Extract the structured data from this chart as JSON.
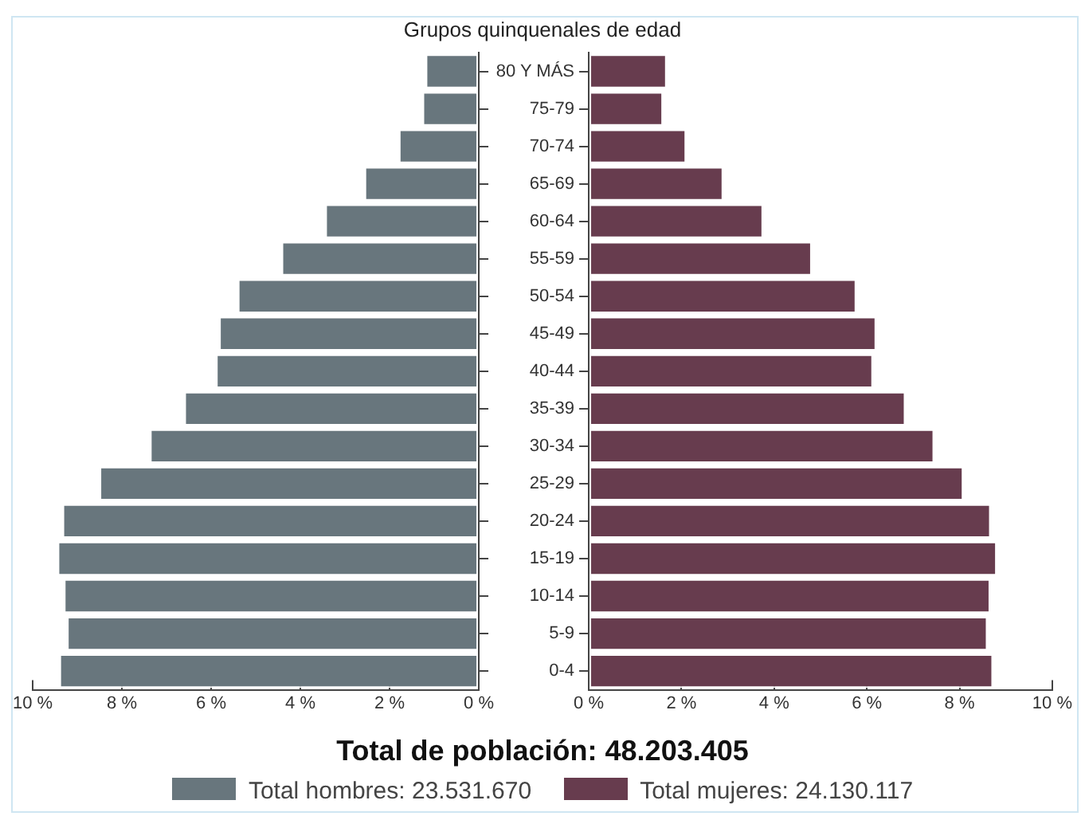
{
  "chart_data": [
    {
      "type": "bar",
      "orientation": "horizontal",
      "categories": [
        null,
        null,
        null,
        null,
        null,
        null,
        null,
        null,
        null,
        null,
        null,
        null,
        null,
        null,
        null,
        null,
        null
      ],
      "series": [
        {
          "name": "Total hombres: 23.531.670",
          "color": "#68767d",
          "values": [
            1.19,
            1.26,
            1.79,
            2.56,
            3.44,
            4.42,
            5.4,
            5.82,
            5.89,
            6.6,
            7.37,
            8.5,
            9.33,
            9.44,
            9.3,
            9.23,
            9.4
          ]
        }
      ],
      "xlim": [
        10,
        0
      ],
      "xticks": [
        {
          "value": 10,
          "label": "10 %"
        },
        {
          "value": 8,
          "label": "8 %"
        },
        {
          "value": 6,
          "label": "6 %"
        },
        {
          "value": 4,
          "label": "4 %"
        },
        {
          "value": 2,
          "label": "2 %"
        },
        {
          "value": 0,
          "label": "0 %"
        }
      ],
      "grid": false,
      "legend": "bottom",
      "annotations": [
        "Total de población: 48.203.405"
      ]
    },
    {
      "type": "bar",
      "orientation": "horizontal",
      "ylabel": "Grupos quinquenales de edad",
      "categories": [
        "80 Y MÁS",
        "75-79",
        "70-74",
        "65-69",
        "60-64",
        "55-59",
        "50-54",
        "45-49",
        "40-44",
        "35-39",
        "30-34",
        "25-29",
        "20-24",
        "15-19",
        "10-14",
        "5-9",
        "0-4"
      ],
      "series": [
        {
          "name": "Total mujeres: 24.130.117",
          "color": "#673c4e",
          "values": [
            1.68,
            1.6,
            2.1,
            2.9,
            3.76,
            4.81,
            5.77,
            6.2,
            6.13,
            6.83,
            7.45,
            8.08,
            8.67,
            8.8,
            8.66,
            8.6,
            8.72
          ]
        }
      ],
      "xlim": [
        0,
        10
      ],
      "xticks": [
        {
          "value": 0,
          "label": "0 %"
        },
        {
          "value": 2,
          "label": "2 %"
        },
        {
          "value": 4,
          "label": "4 %"
        },
        {
          "value": 6,
          "label": "6 %"
        },
        {
          "value": 8,
          "label": "8 %"
        },
        {
          "value": 10,
          "label": "10 %"
        }
      ],
      "grid": false,
      "legend": "bottom"
    }
  ]
}
